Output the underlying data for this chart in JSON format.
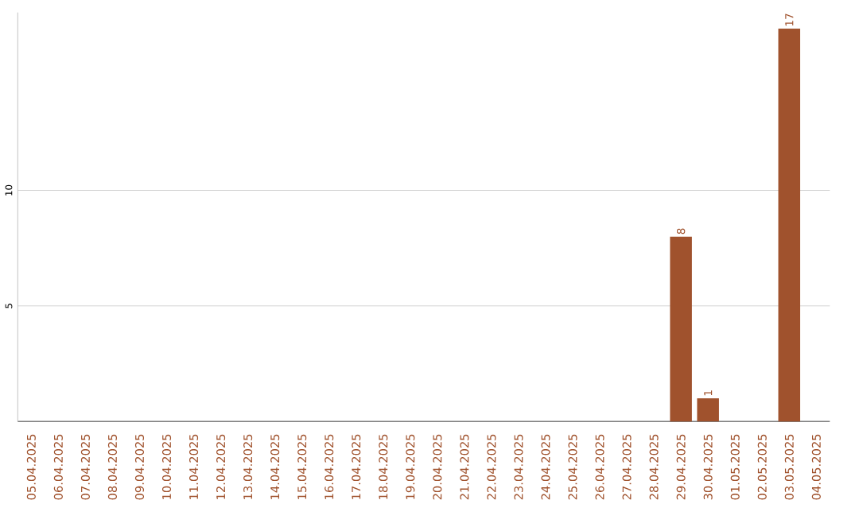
{
  "chart_data": {
    "type": "bar",
    "categories": [
      "05.04.2025",
      "06.04.2025",
      "07.04.2025",
      "08.04.2025",
      "09.04.2025",
      "10.04.2025",
      "11.04.2025",
      "12.04.2025",
      "13.04.2025",
      "14.04.2025",
      "15.04.2025",
      "16.04.2025",
      "17.04.2025",
      "18.04.2025",
      "19.04.2025",
      "20.04.2025",
      "21.04.2025",
      "22.04.2025",
      "23.04.2025",
      "24.04.2025",
      "25.04.2025",
      "26.04.2025",
      "27.04.2025",
      "28.04.2025",
      "29.04.2025",
      "30.04.2025",
      "01.05.2025",
      "02.05.2025",
      "03.05.2025",
      "04.05.2025"
    ],
    "values": [
      0,
      0,
      0,
      0,
      0,
      0,
      0,
      0,
      0,
      0,
      0,
      0,
      0,
      0,
      0,
      0,
      0,
      0,
      0,
      0,
      0,
      0,
      0,
      0,
      8,
      1,
      0,
      0,
      17,
      0
    ],
    "value_labels": [
      null,
      null,
      null,
      null,
      null,
      null,
      null,
      null,
      null,
      null,
      null,
      null,
      null,
      null,
      null,
      null,
      null,
      null,
      null,
      null,
      null,
      null,
      null,
      null,
      "8",
      "1",
      null,
      null,
      "17",
      null
    ],
    "color": "#a0522d",
    "ylim": [
      0,
      17.7
    ],
    "yticks": [
      5,
      10
    ],
    "grid": "y"
  }
}
